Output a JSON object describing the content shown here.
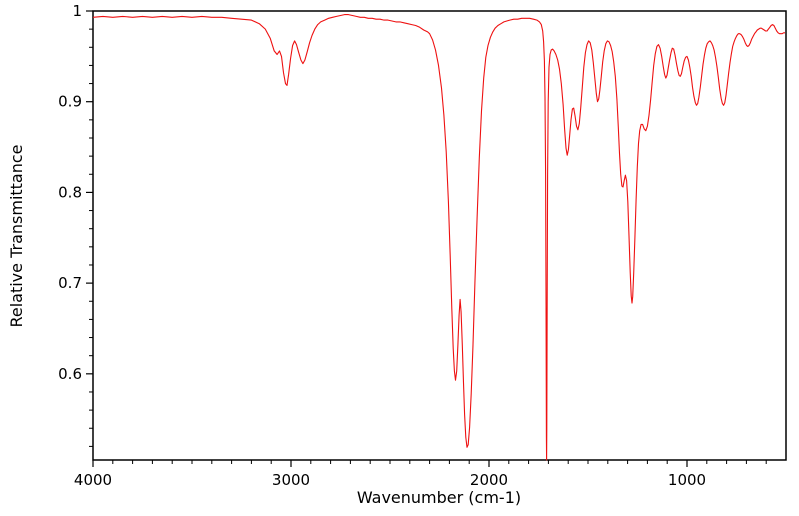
{
  "chart_data": {
    "type": "line",
    "title": "",
    "xlabel": "Wavenumber (cm-1)",
    "ylabel": "Relative Transmittance",
    "xlim": [
      4000,
      500
    ],
    "ylim": [
      0.505,
      1.0
    ],
    "x_axis_reversed": true,
    "grid": false,
    "legend": "none",
    "background_color": "#ffffff",
    "axis_color": "#000000",
    "line_color": "#ee1111",
    "x_tick_values": [
      4000,
      3000,
      2000,
      1000
    ],
    "x_tick_labels": [
      "4000",
      "3000",
      "2000",
      "1000"
    ],
    "y_tick_values": [
      0.6,
      0.7,
      0.8,
      0.9,
      1.0
    ],
    "y_tick_labels": [
      "0.6",
      "0.7",
      "0.8",
      "0.9",
      "1"
    ],
    "x_minor_step": 100,
    "y_minor_step": 0.02,
    "series": [
      {
        "name": "transmittance",
        "points": [
          [
            4000,
            0.993
          ],
          [
            3950,
            0.994
          ],
          [
            3900,
            0.993
          ],
          [
            3850,
            0.994
          ],
          [
            3800,
            0.993
          ],
          [
            3750,
            0.994
          ],
          [
            3700,
            0.993
          ],
          [
            3650,
            0.994
          ],
          [
            3600,
            0.993
          ],
          [
            3550,
            0.994
          ],
          [
            3500,
            0.993
          ],
          [
            3450,
            0.994
          ],
          [
            3400,
            0.993
          ],
          [
            3350,
            0.993
          ],
          [
            3300,
            0.992
          ],
          [
            3250,
            0.991
          ],
          [
            3200,
            0.99
          ],
          [
            3160,
            0.986
          ],
          [
            3130,
            0.98
          ],
          [
            3105,
            0.97
          ],
          [
            3085,
            0.956
          ],
          [
            3070,
            0.952
          ],
          [
            3058,
            0.956
          ],
          [
            3048,
            0.95
          ],
          [
            3038,
            0.932
          ],
          [
            3028,
            0.92
          ],
          [
            3020,
            0.918
          ],
          [
            3012,
            0.93
          ],
          [
            3002,
            0.948
          ],
          [
            2992,
            0.962
          ],
          [
            2982,
            0.967
          ],
          [
            2972,
            0.963
          ],
          [
            2962,
            0.955
          ],
          [
            2950,
            0.946
          ],
          [
            2940,
            0.942
          ],
          [
            2930,
            0.946
          ],
          [
            2918,
            0.955
          ],
          [
            2906,
            0.965
          ],
          [
            2894,
            0.973
          ],
          [
            2880,
            0.98
          ],
          [
            2865,
            0.985
          ],
          [
            2850,
            0.988
          ],
          [
            2830,
            0.99
          ],
          [
            2810,
            0.992
          ],
          [
            2790,
            0.993
          ],
          [
            2770,
            0.994
          ],
          [
            2750,
            0.995
          ],
          [
            2730,
            0.996
          ],
          [
            2710,
            0.996
          ],
          [
            2690,
            0.995
          ],
          [
            2670,
            0.994
          ],
          [
            2650,
            0.993
          ],
          [
            2630,
            0.993
          ],
          [
            2610,
            0.992
          ],
          [
            2590,
            0.992
          ],
          [
            2570,
            0.991
          ],
          [
            2550,
            0.991
          ],
          [
            2530,
            0.99
          ],
          [
            2510,
            0.99
          ],
          [
            2490,
            0.989
          ],
          [
            2470,
            0.988
          ],
          [
            2450,
            0.988
          ],
          [
            2430,
            0.987
          ],
          [
            2410,
            0.986
          ],
          [
            2390,
            0.985
          ],
          [
            2370,
            0.984
          ],
          [
            2350,
            0.982
          ],
          [
            2330,
            0.979
          ],
          [
            2310,
            0.977
          ],
          [
            2300,
            0.975
          ],
          [
            2285,
            0.968
          ],
          [
            2270,
            0.957
          ],
          [
            2255,
            0.94
          ],
          [
            2240,
            0.915
          ],
          [
            2228,
            0.885
          ],
          [
            2216,
            0.845
          ],
          [
            2205,
            0.79
          ],
          [
            2196,
            0.73
          ],
          [
            2188,
            0.672
          ],
          [
            2181,
            0.628
          ],
          [
            2175,
            0.603
          ],
          [
            2169,
            0.593
          ],
          [
            2163,
            0.603
          ],
          [
            2157,
            0.632
          ],
          [
            2151,
            0.665
          ],
          [
            2146,
            0.682
          ],
          [
            2141,
            0.668
          ],
          [
            2135,
            0.632
          ],
          [
            2129,
            0.59
          ],
          [
            2123,
            0.555
          ],
          [
            2117,
            0.53
          ],
          [
            2111,
            0.519
          ],
          [
            2105,
            0.522
          ],
          [
            2098,
            0.541
          ],
          [
            2090,
            0.578
          ],
          [
            2081,
            0.632
          ],
          [
            2071,
            0.7
          ],
          [
            2060,
            0.772
          ],
          [
            2049,
            0.838
          ],
          [
            2038,
            0.89
          ],
          [
            2027,
            0.926
          ],
          [
            2016,
            0.949
          ],
          [
            2005,
            0.962
          ],
          [
            1993,
            0.971
          ],
          [
            1981,
            0.977
          ],
          [
            1969,
            0.981
          ],
          [
            1955,
            0.984
          ],
          [
            1940,
            0.986
          ],
          [
            1925,
            0.988
          ],
          [
            1910,
            0.989
          ],
          [
            1895,
            0.99
          ],
          [
            1875,
            0.991
          ],
          [
            1855,
            0.991
          ],
          [
            1835,
            0.992
          ],
          [
            1815,
            0.992
          ],
          [
            1795,
            0.992
          ],
          [
            1775,
            0.991
          ],
          [
            1758,
            0.99
          ],
          [
            1745,
            0.988
          ],
          [
            1736,
            0.985
          ],
          [
            1729,
            0.978
          ],
          [
            1724,
            0.966
          ],
          [
            1720,
            0.945
          ],
          [
            1717,
            0.905
          ],
          [
            1714,
            0.82
          ],
          [
            1712,
            0.69
          ],
          [
            1710,
            0.53
          ],
          [
            1709,
            0.48
          ],
          [
            1708,
            0.54
          ],
          [
            1706,
            0.69
          ],
          [
            1704,
            0.82
          ],
          [
            1701,
            0.9
          ],
          [
            1697,
            0.938
          ],
          [
            1692,
            0.952
          ],
          [
            1686,
            0.957
          ],
          [
            1679,
            0.958
          ],
          [
            1671,
            0.956
          ],
          [
            1662,
            0.952
          ],
          [
            1653,
            0.946
          ],
          [
            1644,
            0.936
          ],
          [
            1635,
            0.92
          ],
          [
            1626,
            0.897
          ],
          [
            1618,
            0.87
          ],
          [
            1611,
            0.849
          ],
          [
            1605,
            0.841
          ],
          [
            1599,
            0.847
          ],
          [
            1593,
            0.862
          ],
          [
            1586,
            0.88
          ],
          [
            1579,
            0.892
          ],
          [
            1572,
            0.893
          ],
          [
            1565,
            0.884
          ],
          [
            1558,
            0.873
          ],
          [
            1551,
            0.869
          ],
          [
            1544,
            0.876
          ],
          [
            1537,
            0.893
          ],
          [
            1529,
            0.916
          ],
          [
            1521,
            0.938
          ],
          [
            1513,
            0.954
          ],
          [
            1505,
            0.963
          ],
          [
            1497,
            0.967
          ],
          [
            1489,
            0.965
          ],
          [
            1481,
            0.957
          ],
          [
            1473,
            0.943
          ],
          [
            1465,
            0.925
          ],
          [
            1458,
            0.909
          ],
          [
            1452,
            0.9
          ],
          [
            1446,
            0.903
          ],
          [
            1440,
            0.913
          ],
          [
            1433,
            0.928
          ],
          [
            1426,
            0.944
          ],
          [
            1418,
            0.956
          ],
          [
            1410,
            0.964
          ],
          [
            1402,
            0.967
          ],
          [
            1394,
            0.966
          ],
          [
            1386,
            0.962
          ],
          [
            1378,
            0.955
          ],
          [
            1370,
            0.944
          ],
          [
            1362,
            0.928
          ],
          [
            1354,
            0.903
          ],
          [
            1347,
            0.872
          ],
          [
            1341,
            0.843
          ],
          [
            1335,
            0.82
          ],
          [
            1329,
            0.807
          ],
          [
            1323,
            0.806
          ],
          [
            1317,
            0.813
          ],
          [
            1311,
            0.819
          ],
          [
            1305,
            0.813
          ],
          [
            1299,
            0.79
          ],
          [
            1293,
            0.752
          ],
          [
            1287,
            0.712
          ],
          [
            1282,
            0.686
          ],
          [
            1278,
            0.678
          ],
          [
            1274,
            0.685
          ],
          [
            1269,
            0.711
          ],
          [
            1263,
            0.75
          ],
          [
            1257,
            0.792
          ],
          [
            1251,
            0.828
          ],
          [
            1245,
            0.854
          ],
          [
            1239,
            0.868
          ],
          [
            1232,
            0.875
          ],
          [
            1224,
            0.875
          ],
          [
            1216,
            0.87
          ],
          [
            1208,
            0.868
          ],
          [
            1200,
            0.873
          ],
          [
            1192,
            0.885
          ],
          [
            1184,
            0.902
          ],
          [
            1176,
            0.922
          ],
          [
            1168,
            0.94
          ],
          [
            1160,
            0.953
          ],
          [
            1152,
            0.961
          ],
          [
            1144,
            0.963
          ],
          [
            1136,
            0.959
          ],
          [
            1128,
            0.95
          ],
          [
            1120,
            0.939
          ],
          [
            1113,
            0.93
          ],
          [
            1107,
            0.926
          ],
          [
            1101,
            0.929
          ],
          [
            1095,
            0.937
          ],
          [
            1088,
            0.946
          ],
          [
            1081,
            0.954
          ],
          [
            1074,
            0.959
          ],
          [
            1067,
            0.958
          ],
          [
            1060,
            0.951
          ],
          [
            1053,
            0.942
          ],
          [
            1046,
            0.934
          ],
          [
            1040,
            0.929
          ],
          [
            1034,
            0.928
          ],
          [
            1028,
            0.931
          ],
          [
            1021,
            0.938
          ],
          [
            1014,
            0.945
          ],
          [
            1007,
            0.949
          ],
          [
            1000,
            0.95
          ],
          [
            993,
            0.946
          ],
          [
            986,
            0.938
          ],
          [
            979,
            0.928
          ],
          [
            972,
            0.916
          ],
          [
            965,
            0.906
          ],
          [
            958,
            0.899
          ],
          [
            952,
            0.896
          ],
          [
            946,
            0.898
          ],
          [
            940,
            0.905
          ],
          [
            933,
            0.916
          ],
          [
            926,
            0.929
          ],
          [
            919,
            0.941
          ],
          [
            912,
            0.951
          ],
          [
            905,
            0.959
          ],
          [
            898,
            0.964
          ],
          [
            891,
            0.966
          ],
          [
            884,
            0.967
          ],
          [
            877,
            0.965
          ],
          [
            870,
            0.962
          ],
          [
            863,
            0.957
          ],
          [
            856,
            0.949
          ],
          [
            849,
            0.939
          ],
          [
            842,
            0.927
          ],
          [
            835,
            0.914
          ],
          [
            828,
            0.904
          ],
          [
            821,
            0.898
          ],
          [
            815,
            0.896
          ],
          [
            809,
            0.899
          ],
          [
            803,
            0.907
          ],
          [
            797,
            0.918
          ],
          [
            790,
            0.931
          ],
          [
            783,
            0.943
          ],
          [
            776,
            0.953
          ],
          [
            769,
            0.961
          ],
          [
            762,
            0.966
          ],
          [
            755,
            0.97
          ],
          [
            748,
            0.973
          ],
          [
            741,
            0.975
          ],
          [
            734,
            0.975
          ],
          [
            727,
            0.974
          ],
          [
            720,
            0.972
          ],
          [
            713,
            0.969
          ],
          [
            706,
            0.965
          ],
          [
            699,
            0.962
          ],
          [
            693,
            0.961
          ],
          [
            687,
            0.962
          ],
          [
            680,
            0.965
          ],
          [
            673,
            0.969
          ],
          [
            666,
            0.972
          ],
          [
            659,
            0.975
          ],
          [
            652,
            0.977
          ],
          [
            645,
            0.979
          ],
          [
            638,
            0.98
          ],
          [
            631,
            0.981
          ],
          [
            624,
            0.981
          ],
          [
            617,
            0.98
          ],
          [
            610,
            0.979
          ],
          [
            603,
            0.978
          ],
          [
            596,
            0.978
          ],
          [
            589,
            0.98
          ],
          [
            582,
            0.982
          ],
          [
            575,
            0.984
          ],
          [
            568,
            0.985
          ],
          [
            561,
            0.984
          ],
          [
            554,
            0.981
          ],
          [
            547,
            0.978
          ],
          [
            540,
            0.976
          ],
          [
            533,
            0.975
          ],
          [
            526,
            0.975
          ],
          [
            519,
            0.975
          ],
          [
            512,
            0.976
          ],
          [
            505,
            0.976
          ]
        ]
      }
    ]
  }
}
